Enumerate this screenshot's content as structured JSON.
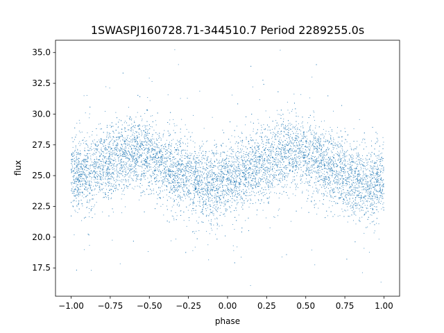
{
  "chart_data": {
    "type": "scatter",
    "title": "1SWASPJ160728.71-344510.7 Period 2289255.0s",
    "xlabel": "phase",
    "ylabel": "flux",
    "xlim": [
      -1.1,
      1.1
    ],
    "ylim": [
      15.2,
      36.0
    ],
    "x_ticks": [
      -1.0,
      -0.75,
      -0.5,
      -0.25,
      0.0,
      0.25,
      0.5,
      0.75,
      1.0
    ],
    "x_tick_labels": [
      "−1.00",
      "−0.75",
      "−0.50",
      "−0.25",
      "0.00",
      "0.25",
      "0.50",
      "0.75",
      "1.00"
    ],
    "y_ticks": [
      17.5,
      20.0,
      22.5,
      25.0,
      27.5,
      30.0,
      32.5,
      35.0
    ],
    "y_tick_labels": [
      "17.5",
      "20.0",
      "22.5",
      "25.0",
      "27.5",
      "30.0",
      "32.5",
      "35.0"
    ],
    "grid": false,
    "marker_color": "#1f77b4",
    "x_range": [
      -1.0,
      1.0
    ],
    "y_range": [
      16.0,
      35.5
    ],
    "profile": {
      "phase": [
        -1.0,
        -0.9,
        -0.8,
        -0.7,
        -0.6,
        -0.5,
        -0.4,
        -0.3,
        -0.2,
        -0.1,
        0.0,
        0.1,
        0.2,
        0.3,
        0.4,
        0.5,
        0.6,
        0.7,
        0.8,
        0.9,
        1.0
      ],
      "median_flux": [
        25.0,
        25.3,
        25.8,
        26.5,
        27.0,
        26.5,
        25.8,
        25.2,
        24.6,
        24.2,
        24.5,
        25.0,
        25.8,
        26.5,
        27.0,
        26.5,
        25.8,
        25.2,
        24.6,
        24.3,
        24.8
      ]
    }
  }
}
